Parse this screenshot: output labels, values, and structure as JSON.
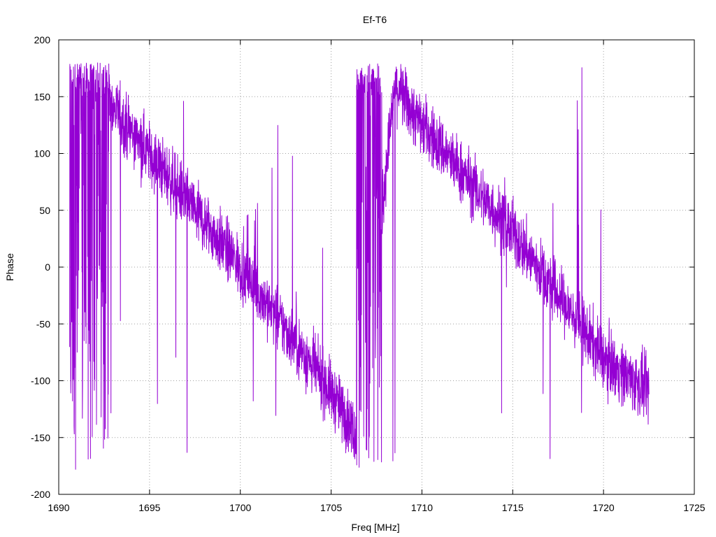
{
  "chart_data": {
    "type": "line",
    "title": "Ef-T6",
    "xlabel": "Freq [MHz]",
    "ylabel": "Phase",
    "xlim": [
      1690,
      1725
    ],
    "ylim": [
      -200,
      200
    ],
    "xticks": [
      1690,
      1695,
      1700,
      1705,
      1710,
      1715,
      1720,
      1725
    ],
    "yticks": [
      -200,
      -150,
      -100,
      -50,
      0,
      50,
      100,
      150,
      200
    ],
    "grid": true,
    "legend": "none",
    "series": [
      {
        "color": "#9400d3",
        "x_range": [
          1690.6,
          1722.5
        ],
        "trend": [
          {
            "x": 1690.6,
            "y": 150
          },
          {
            "x": 1693.0,
            "y": 140
          },
          {
            "x": 1695.0,
            "y": 100
          },
          {
            "x": 1700.0,
            "y": 0
          },
          {
            "x": 1705.0,
            "y": -110
          },
          {
            "x": 1706.5,
            "y": -150
          },
          {
            "x": 1708.5,
            "y": 160
          },
          {
            "x": 1710.0,
            "y": 125
          },
          {
            "x": 1715.0,
            "y": 30
          },
          {
            "x": 1720.0,
            "y": -80
          },
          {
            "x": 1722.5,
            "y": -110
          }
        ],
        "wrap_regions": [
          [
            1690.6,
            1692.8
          ],
          [
            1706.4,
            1707.8
          ]
        ],
        "spread": 25
      }
    ]
  }
}
